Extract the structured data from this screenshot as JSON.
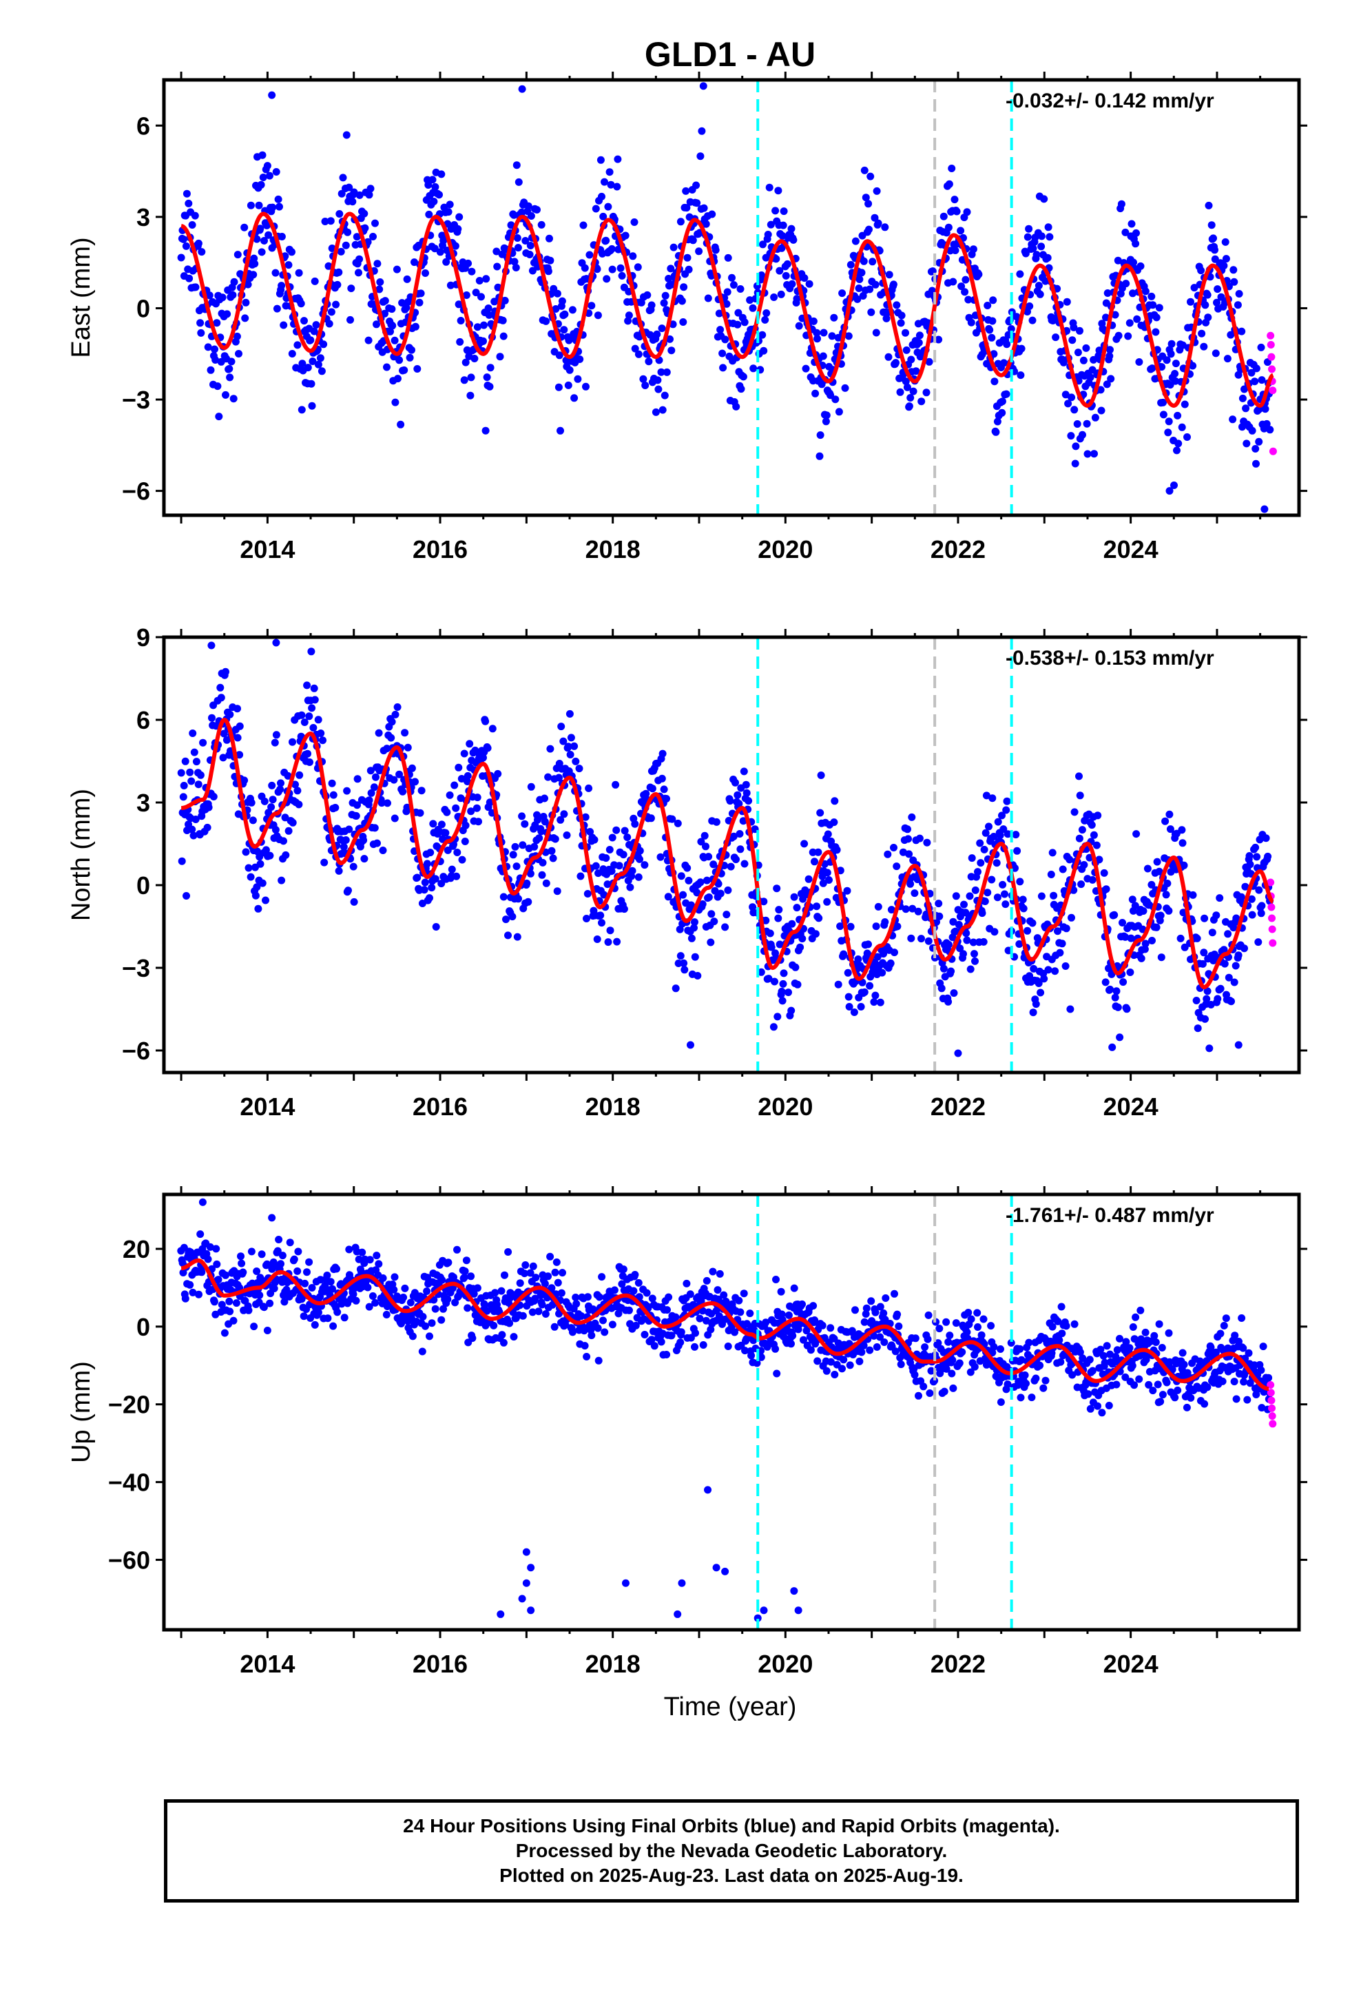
{
  "title": "GLD1 - AU",
  "xlabel": "Time (year)",
  "colors": {
    "final": "#0000ff",
    "rapid": "#ff00ff",
    "model": "#ff0000",
    "offset_equipment": "#00ffff",
    "offset_other": "#c0c0c0"
  },
  "footer": {
    "line1": "24 Hour Positions Using Final Orbits (blue) and Rapid Orbits (magenta).",
    "line2": "Processed by the Nevada Geodetic Laboratory.",
    "line3": "Plotted on 2025-Aug-23. Last data on 2025-Aug-19."
  },
  "chart_data": [
    {
      "type": "scatter",
      "ylabel": "East (mm)",
      "rate": "-0.032+/- 0.142 mm/yr",
      "xlim": [
        2012.8,
        2025.95
      ],
      "ylim": [
        -6.8,
        7.5
      ],
      "xticks": [
        2014,
        2016,
        2018,
        2020,
        2022,
        2024
      ],
      "yticks": [
        -6,
        -3,
        0,
        3,
        6
      ],
      "vlines": [
        {
          "x": 2019.68,
          "color": "cyan"
        },
        {
          "x": 2021.73,
          "color": "gray"
        },
        {
          "x": 2022.62,
          "color": "cyan"
        }
      ],
      "model": {
        "x": [
          2013.0,
          2013.5,
          2013.95,
          2014.5,
          2014.95,
          2015.5,
          2015.95,
          2016.5,
          2016.95,
          2017.5,
          2017.95,
          2018.5,
          2018.95,
          2019.5,
          2019.95,
          2020.5,
          2020.95,
          2021.5,
          2021.95,
          2022.5,
          2022.95,
          2023.5,
          2023.95,
          2024.5,
          2024.95,
          2025.5,
          2025.65
        ],
        "y": [
          2.7,
          -1.3,
          3.1,
          -1.4,
          3.1,
          -1.5,
          3.0,
          -1.5,
          3.0,
          -1.6,
          2.9,
          -1.6,
          2.9,
          -1.6,
          2.2,
          -2.4,
          2.2,
          -2.4,
          2.4,
          -2.2,
          1.4,
          -3.2,
          1.4,
          -3.2,
          1.4,
          -3.2,
          -2.2
        ]
      },
      "scatter": {
        "spread": 1.0,
        "outliers": [
          [
            2014.05,
            7.0
          ],
          [
            2016.95,
            7.2
          ],
          [
            2019.05,
            7.3
          ],
          [
            2025.55,
            -6.6
          ],
          [
            2024.45,
            -6.0
          ]
        ]
      },
      "rapid": [
        -0.9,
        -1.2,
        -1.6,
        -2.0,
        -2.4,
        -2.7,
        -4.7
      ]
    },
    {
      "type": "scatter",
      "ylabel": "North (mm)",
      "rate": "-0.538+/- 0.153 mm/yr",
      "xlim": [
        2012.8,
        2025.95
      ],
      "ylim": [
        -6.8,
        9.0
      ],
      "xticks": [
        2014,
        2016,
        2018,
        2020,
        2022,
        2024
      ],
      "yticks": [
        -6,
        -3,
        0,
        3,
        6,
        9
      ],
      "vlines": [
        {
          "x": 2019.68,
          "color": "cyan"
        },
        {
          "x": 2021.73,
          "color": "gray"
        },
        {
          "x": 2022.62,
          "color": "cyan"
        }
      ],
      "model": {
        "x": [
          2013.0,
          2013.25,
          2013.5,
          2013.85,
          2014.1,
          2014.5,
          2014.85,
          2015.1,
          2015.5,
          2015.85,
          2016.1,
          2016.5,
          2016.85,
          2017.1,
          2017.5,
          2017.85,
          2018.1,
          2018.5,
          2018.85,
          2019.1,
          2019.5,
          2019.85,
          2020.1,
          2020.5,
          2020.85,
          2021.1,
          2021.5,
          2021.85,
          2022.1,
          2022.5,
          2022.85,
          2023.1,
          2023.5,
          2023.85,
          2024.1,
          2024.5,
          2024.85,
          2025.1,
          2025.5,
          2025.65
        ],
        "y": [
          2.8,
          3.1,
          6.0,
          1.4,
          2.6,
          5.5,
          0.8,
          2.0,
          5.0,
          0.3,
          1.6,
          4.4,
          -0.3,
          1.0,
          3.9,
          -0.8,
          0.4,
          3.3,
          -1.3,
          -0.1,
          2.8,
          -3.0,
          -1.7,
          1.2,
          -3.4,
          -2.2,
          0.7,
          -2.7,
          -1.5,
          1.5,
          -2.7,
          -1.5,
          1.5,
          -3.2,
          -2.0,
          1.0,
          -3.7,
          -2.5,
          0.5,
          -0.6
        ]
      },
      "scatter": {
        "spread": 1.1,
        "outliers": [
          [
            2013.35,
            8.7
          ],
          [
            2014.1,
            8.8
          ],
          [
            2018.9,
            -5.8
          ],
          [
            2022.0,
            -6.1
          ],
          [
            2025.25,
            -5.8
          ],
          [
            2023.3,
            -4.5
          ]
        ]
      },
      "rapid": [
        0.1,
        -0.4,
        -0.8,
        -1.2,
        -1.6,
        -2.1
      ]
    },
    {
      "type": "scatter",
      "ylabel": "Up (mm)",
      "rate": "-1.761+/- 0.487 mm/yr",
      "xlim": [
        2012.8,
        2025.95
      ],
      "ylim": [
        -78,
        34
      ],
      "xticks": [
        2014,
        2016,
        2018,
        2020,
        2022,
        2024
      ],
      "yticks": [
        -60,
        -40,
        -20,
        0,
        20
      ],
      "vlines": [
        {
          "x": 2019.68,
          "color": "cyan"
        },
        {
          "x": 2021.73,
          "color": "gray"
        },
        {
          "x": 2022.62,
          "color": "cyan"
        }
      ],
      "model": {
        "x": [
          2013.0,
          2013.2,
          2013.5,
          2013.9,
          2014.15,
          2014.6,
          2015.15,
          2015.6,
          2016.15,
          2016.6,
          2017.15,
          2017.6,
          2018.15,
          2018.6,
          2019.15,
          2019.6,
          2019.7,
          2020.15,
          2020.6,
          2021.15,
          2021.6,
          2021.73,
          2022.15,
          2022.6,
          2023.15,
          2023.6,
          2024.15,
          2024.6,
          2025.15,
          2025.6
        ],
        "y": [
          15,
          17,
          8,
          10,
          14,
          6,
          13,
          4,
          11,
          2,
          10,
          1,
          8,
          0,
          6,
          -2,
          -3,
          2,
          -7,
          0,
          -9,
          -9,
          -4,
          -12,
          -5,
          -14,
          -6,
          -14,
          -7,
          -16
        ]
      },
      "scatter": {
        "spread": 4.0,
        "outliers": [
          [
            2013.25,
            32
          ],
          [
            2014.05,
            28
          ],
          [
            2014.0,
            -1
          ],
          [
            2016.7,
            -74
          ],
          [
            2017.0,
            -58
          ],
          [
            2017.05,
            -62
          ],
          [
            2017.0,
            -66
          ],
          [
            2016.95,
            -70
          ],
          [
            2017.05,
            -73
          ],
          [
            2018.15,
            -66
          ],
          [
            2018.8,
            -66
          ],
          [
            2018.75,
            -74
          ],
          [
            2019.1,
            -42
          ],
          [
            2019.2,
            -62
          ],
          [
            2019.3,
            -63
          ],
          [
            2019.68,
            -75
          ],
          [
            2019.75,
            -73
          ],
          [
            2020.1,
            -68
          ],
          [
            2020.15,
            -73
          ]
        ]
      },
      "rapid": [
        -15,
        -17,
        -19,
        -21,
        -23,
        -25
      ]
    }
  ]
}
